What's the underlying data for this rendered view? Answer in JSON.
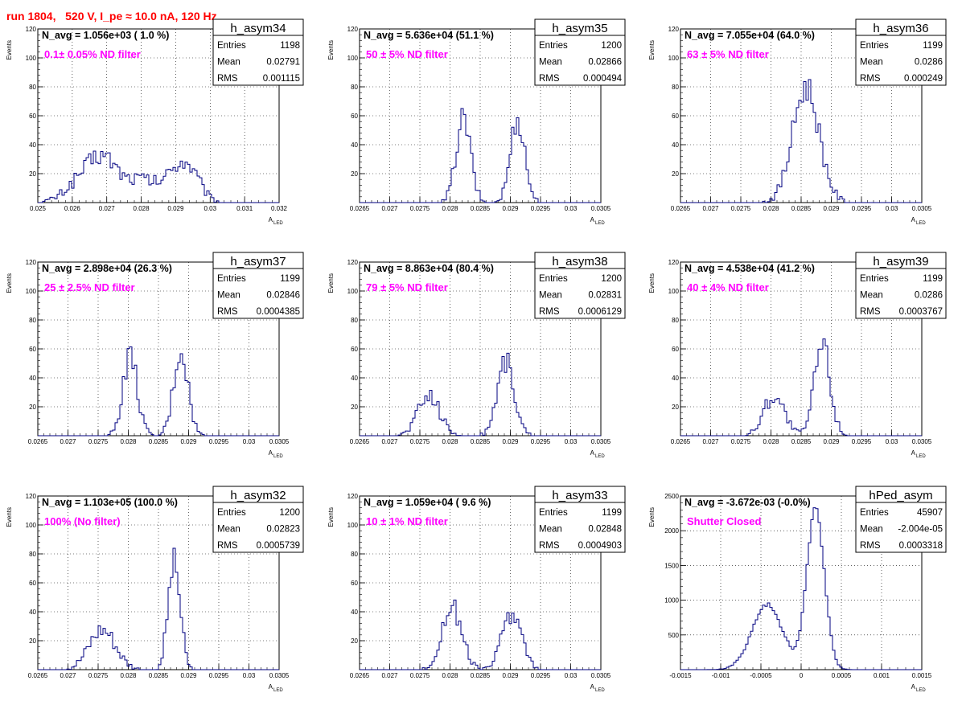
{
  "header": "run 1804,   520 V, I_pe ≈ 10.0 nA, 120 Hz",
  "colors": {
    "hist": "#000080",
    "filter_text": "#ff00ff",
    "header": "#ff0000",
    "grid": "#000000"
  },
  "axis_labels": {
    "y": "Events",
    "x_main": "A",
    "x_sub": "LED"
  },
  "stats_labels": {
    "entries": "Entries",
    "mean": "Mean",
    "rms": "RMS"
  },
  "chart_data": [
    {
      "type": "bar",
      "name": "h_asym34",
      "navg": "N_avg = 1.056e+03 ( 1.0 %)",
      "filter": "0.1± 0.05% ND filter",
      "stats": {
        "entries": "1198",
        "mean": "0.02791",
        "rms": "0.001115"
      },
      "xlim": [
        0.025,
        0.032
      ],
      "ylim": [
        0,
        120
      ],
      "xticks": [
        "0.025",
        "0.026",
        "0.027",
        "0.028",
        "0.029",
        "0.03",
        "0.031",
        "0.032"
      ],
      "yticks": [
        "20",
        "40",
        "60",
        "80",
        "100",
        "120"
      ],
      "peaks": [
        [
          0.0264,
          18,
          0.0005
        ],
        [
          0.027,
          22,
          0.0004
        ],
        [
          0.028,
          15,
          0.0004
        ],
        [
          0.0291,
          24,
          0.0004
        ],
        [
          0.0295,
          8,
          0.0003
        ]
      ]
    },
    {
      "type": "bar",
      "name": "h_asym35",
      "navg": "N_avg = 5.636e+04 (51.1 %)",
      "filter": "50 ± 5% ND filter",
      "stats": {
        "entries": "1200",
        "mean": "0.02866",
        "rms": "0.000494"
      },
      "xlim": [
        0.0265,
        0.0305
      ],
      "ylim": [
        0,
        120
      ],
      "xticks": [
        "0.0265",
        "0.027",
        "0.0275",
        "0.028",
        "0.0285",
        "0.029",
        "0.0295",
        "0.03",
        "0.0305"
      ],
      "yticks": [
        "20",
        "40",
        "60",
        "80",
        "100",
        "120"
      ],
      "peaks": [
        [
          0.02822,
          58,
          0.00012
        ],
        [
          0.02912,
          58,
          0.00012
        ]
      ]
    },
    {
      "type": "bar",
      "name": "h_asym36",
      "navg": "N_avg = 7.055e+04 (64.0 %)",
      "filter": "63 ± 5% ND filter",
      "stats": {
        "entries": "1199",
        "mean": "0.0286",
        "rms": "0.000249"
      },
      "xlim": [
        0.0265,
        0.0305
      ],
      "ylim": [
        0,
        120
      ],
      "xticks": [
        "0.0265",
        "0.027",
        "0.0275",
        "0.028",
        "0.0285",
        "0.029",
        "0.0295",
        "0.03",
        "0.0305"
      ],
      "yticks": [
        "20",
        "40",
        "60",
        "80",
        "100",
        "120"
      ],
      "peaks": [
        [
          0.02858,
          80,
          0.00022
        ]
      ]
    },
    {
      "type": "bar",
      "name": "h_asym37",
      "navg": "N_avg = 2.898e+04 (26.3 %)",
      "filter": "25 ± 2.5% ND filter",
      "stats": {
        "entries": "1199",
        "mean": "0.02846",
        "rms": "0.0004385"
      },
      "xlim": [
        0.0265,
        0.0305
      ],
      "ylim": [
        0,
        120
      ],
      "xticks": [
        "0.0265",
        "0.027",
        "0.0275",
        "0.028",
        "0.0285",
        "0.029",
        "0.0295",
        "0.03",
        "0.0305"
      ],
      "yticks": [
        "20",
        "40",
        "60",
        "80",
        "100",
        "120"
      ],
      "peaks": [
        [
          0.02803,
          55,
          0.00012
        ],
        [
          0.02887,
          58,
          0.00012
        ]
      ]
    },
    {
      "type": "bar",
      "name": "h_asym38",
      "navg": "N_avg = 8.863e+04 (80.4 %)",
      "filter": "79 ± 5% ND filter",
      "stats": {
        "entries": "1200",
        "mean": "0.02831",
        "rms": "0.0006129"
      },
      "xlim": [
        0.0265,
        0.0305
      ],
      "ylim": [
        0,
        120
      ],
      "xticks": [
        "0.0265",
        "0.027",
        "0.0275",
        "0.028",
        "0.0285",
        "0.029",
        "0.0295",
        "0.03",
        "0.0305"
      ],
      "yticks": [
        "20",
        "40",
        "60",
        "80",
        "100",
        "120"
      ],
      "peaks": [
        [
          0.02765,
          28,
          0.00018
        ],
        [
          0.02892,
          52,
          0.00014
        ]
      ]
    },
    {
      "type": "bar",
      "name": "h_asym39",
      "navg": "N_avg = 4.538e+04 (41.2 %)",
      "filter": "40 ± 4% ND filter",
      "stats": {
        "entries": "1199",
        "mean": "0.0286",
        "rms": "0.0003767"
      },
      "xlim": [
        0.0265,
        0.0305
      ],
      "ylim": [
        0,
        120
      ],
      "xticks": [
        "0.0265",
        "0.027",
        "0.0275",
        "0.028",
        "0.0285",
        "0.029",
        "0.0295",
        "0.03",
        "0.0305"
      ],
      "yticks": [
        "20",
        "40",
        "60",
        "80",
        "100",
        "120"
      ],
      "peaks": [
        [
          0.02805,
          28,
          0.00017
        ],
        [
          0.02885,
          64,
          0.00013
        ]
      ]
    },
    {
      "type": "bar",
      "name": "h_asym32",
      "navg": "N_avg = 1.103e+05 (100.0 %)",
      "filter": "100% (No filter)",
      "stats": {
        "entries": "1200",
        "mean": "0.02823",
        "rms": "0.0005739"
      },
      "xlim": [
        0.0265,
        0.0305
      ],
      "ylim": [
        0,
        120
      ],
      "xticks": [
        "0.0265",
        "0.027",
        "0.0275",
        "0.028",
        "0.0285",
        "0.029",
        "0.0295",
        "0.03",
        "0.0305"
      ],
      "yticks": [
        "20",
        "40",
        "60",
        "80",
        "100",
        "120"
      ],
      "peaks": [
        [
          0.02757,
          28,
          0.00022
        ],
        [
          0.02876,
          74,
          0.0001
        ]
      ]
    },
    {
      "type": "bar",
      "name": "h_asym33",
      "navg": "N_avg = 1.059e+04 ( 9.6 %)",
      "filter": "10 ± 1% ND filter",
      "stats": {
        "entries": "1199",
        "mean": "0.02848",
        "rms": "0.0004903"
      },
      "xlim": [
        0.0265,
        0.0305
      ],
      "ylim": [
        0,
        120
      ],
      "xticks": [
        "0.0265",
        "0.027",
        "0.0275",
        "0.028",
        "0.0285",
        "0.029",
        "0.0295",
        "0.03",
        "0.0305"
      ],
      "yticks": [
        "20",
        "40",
        "60",
        "80",
        "100",
        "120"
      ],
      "peaks": [
        [
          0.02803,
          44,
          0.00016
        ],
        [
          0.02903,
          40,
          0.00016
        ]
      ]
    },
    {
      "type": "bar",
      "name": "hPed_asym",
      "navg": "N_avg = -3.672e-03 (-0.0%)",
      "filter": "Shutter Closed",
      "stats": {
        "entries": "45907",
        "mean": "-2.004e-05",
        "rms": "0.0003318"
      },
      "xlim": [
        -0.0015,
        0.0015
      ],
      "ylim": [
        0,
        2500
      ],
      "xticks": [
        "-0.0015",
        "-0.001",
        "-0.0005",
        "0",
        "0.0005",
        "0.001",
        "0.0015"
      ],
      "yticks": [
        "500",
        "1000",
        "1500",
        "2000",
        "2500"
      ],
      "peaks": [
        [
          -0.00042,
          930,
          0.00019
        ],
        [
          0.00018,
          2300,
          0.00011
        ]
      ]
    }
  ]
}
